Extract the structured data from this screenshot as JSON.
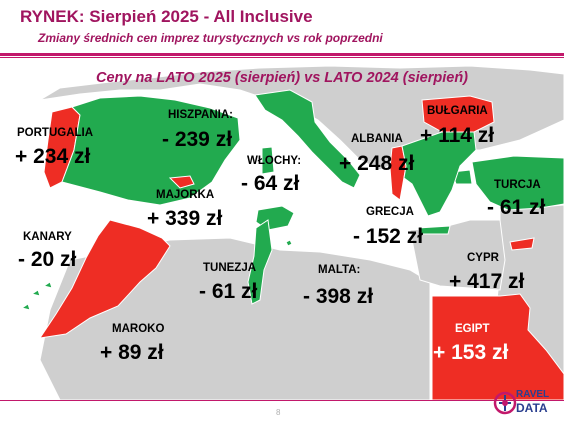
{
  "slide": {
    "title": "RYNEK: Sierpień 2025 - All Inclusive",
    "subtitle": "Zmiany średnich cen imprez turystycznych vs rok poprzedni",
    "heading": "Ceny na LATO 2025 (sierpień) vs  LATO 2024 (sierpień)",
    "page_number": "8"
  },
  "logo": {
    "line1": "RAVEL",
    "line2": "DATA"
  },
  "colors": {
    "increase": "#ee2d24",
    "decrease": "#22aa4f",
    "land": "#cfcfcf",
    "sea": "#ffffff",
    "accent": "#c2186b"
  },
  "chart_data": {
    "type": "map",
    "title": "Ceny na LATO 2025 (sierpień) vs  LATO 2024 (sierpień)",
    "unit": "zł",
    "regions": [
      {
        "name": "PORTUGALIA",
        "value": 234,
        "label": "+ 234 zł"
      },
      {
        "name": "HISZPANIA:",
        "value": -239,
        "label": "- 239 zł"
      },
      {
        "name": "WŁOCHY:",
        "value": -64,
        "label": "- 64 zł"
      },
      {
        "name": "ALBANIA",
        "value": 248,
        "label": "+ 248 zł"
      },
      {
        "name": "BUŁGARIA",
        "value": 114,
        "label": "+ 114 zł"
      },
      {
        "name": "MAJORKA",
        "value": 339,
        "label": "+ 339 zł"
      },
      {
        "name": "TURCJA",
        "value": -61,
        "label": "- 61 zł"
      },
      {
        "name": "KANARY",
        "value": -20,
        "label": "- 20 zł"
      },
      {
        "name": "GRECJA",
        "value": -152,
        "label": "- 152 zł"
      },
      {
        "name": "TUNEZJA",
        "value": -61,
        "label": "- 61 zł"
      },
      {
        "name": "CYPR",
        "value": 417,
        "label": "+ 417 zł"
      },
      {
        "name": "MALTA:",
        "value": -398,
        "label": "- 398 zł"
      },
      {
        "name": "MAROKO",
        "value": 89,
        "label": "+ 89 zł"
      },
      {
        "name": "EGIPT",
        "value": 153,
        "label": "+ 153 zł"
      }
    ]
  }
}
